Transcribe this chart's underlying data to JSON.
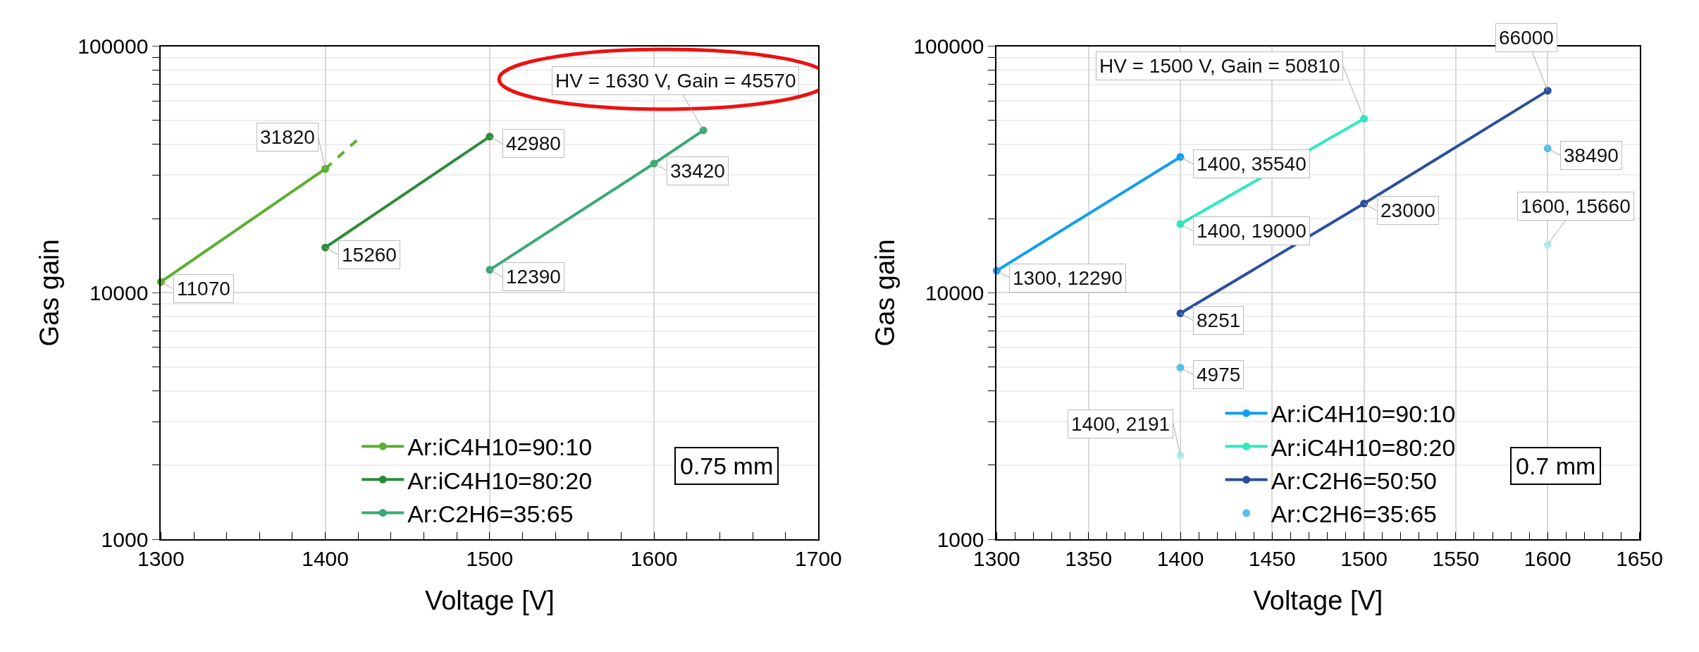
{
  "chart_data": [
    {
      "type": "line",
      "xlabel": "Voltage [V]",
      "ylabel": "Gas gain",
      "log": "y",
      "grid": true,
      "legend": "bottom",
      "marker": "circle",
      "xlim": [
        1300,
        1700
      ],
      "xticks": [
        1300,
        1400,
        1500,
        1600,
        1700
      ],
      "ylim": [
        1000,
        100000
      ],
      "yticks": [
        1000,
        10000,
        100000
      ],
      "annotations": [
        "0.75 mm"
      ],
      "series": [
        {
          "name": "Ar:iC4H10=90:10",
          "color": "#5bb030",
          "x": [
            1300,
            1400
          ],
          "values": [
            11070,
            31820
          ],
          "value_labels": [
            "11070",
            "31820"
          ]
        },
        {
          "type": "line",
          "color": "#5bb030",
          "line_style": "dashed",
          "marker": "none",
          "x": [
            1400,
            1420
          ],
          "values": [
            31820,
            42000
          ]
        },
        {
          "name": "Ar:iC4H10=80:20",
          "color": "#2e8b3a",
          "x": [
            1400,
            1500
          ],
          "values": [
            15260,
            42980
          ],
          "value_labels": [
            "15260",
            "42980"
          ]
        },
        {
          "name": "Ar:C2H6=35:65",
          "color": "#3aaa74",
          "x": [
            1500,
            1600,
            1630
          ],
          "values": [
            12390,
            33420,
            45570
          ],
          "value_labels": [
            "12390",
            "33420",
            "HV = 1630 V, Gain = 45570"
          ]
        }
      ]
    },
    {
      "type": "line",
      "xlabel": "Voltage [V]",
      "ylabel": "Gas gain",
      "log": "y",
      "grid": true,
      "legend": "bottom",
      "marker": "circle",
      "xlim": [
        1300,
        1650
      ],
      "xticks": [
        1300,
        1350,
        1400,
        1450,
        1500,
        1550,
        1600,
        1650
      ],
      "ylim": [
        1000,
        100000
      ],
      "yticks": [
        1000,
        10000,
        100000
      ],
      "annotations": [
        "0.7 mm"
      ],
      "series": [
        {
          "name": "Ar:iC4H10=90:10",
          "color": "#119ef0",
          "x": [
            1300,
            1400
          ],
          "values": [
            12290,
            35540
          ],
          "value_labels": [
            "1300, 12290",
            "1400, 35540"
          ]
        },
        {
          "name": "Ar:iC4H10=80:20",
          "color": "#2ee8c0",
          "x": [
            1400,
            1500
          ],
          "values": [
            19000,
            50810
          ],
          "value_labels": [
            "1400, 19000",
            "HV = 1500 V, Gain = 50810"
          ]
        },
        {
          "name": "Ar:C2H6=50:50",
          "color": "#2a4f9e",
          "x": [
            1400,
            1500,
            1600
          ],
          "values": [
            8251,
            23000,
            66000
          ],
          "value_labels": [
            "8251",
            "23000",
            "66000"
          ]
        },
        {
          "name": "Ar:C2H6=35:65",
          "type": "scatter",
          "color": "#55c0f0",
          "x": [
            1400,
            1600
          ],
          "values": [
            4975,
            38490
          ],
          "value_labels": [
            "4975",
            "38490"
          ]
        },
        {
          "type": "scatter",
          "color": "#b0ece8",
          "x": [
            1400,
            1600
          ],
          "values": [
            2191,
            15660
          ],
          "value_labels": [
            "1400, 2191",
            "1600, 15660"
          ]
        }
      ]
    }
  ]
}
